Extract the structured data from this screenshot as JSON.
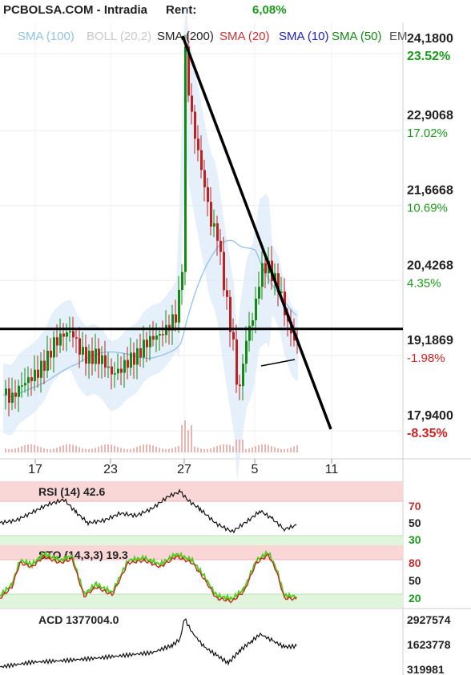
{
  "header": {
    "title": "PCBOLSA.COM - Intradia",
    "rent_label": "Rent:",
    "rent_value": "6,08%"
  },
  "legend": [
    {
      "label": "SMA (100)",
      "color": "#8fc3ea"
    },
    {
      "label": "BOLL (20,2)",
      "color": "#c9c9c9"
    },
    {
      "label": "SMA (200)",
      "color": "#222222"
    },
    {
      "label": "SMA (20)",
      "color": "#d03030"
    },
    {
      "label": "SMA (10)",
      "color": "#2020c0"
    },
    {
      "label": "SMA (50)",
      "color": "#138a13"
    },
    {
      "label": "EM",
      "color": "#555555"
    }
  ],
  "colors": {
    "up": "#138a13",
    "down": "#c02020",
    "positive": "#1a9a1a",
    "negative": "#d42020",
    "sma20": "#d03030",
    "sma10": "#2020c0",
    "sma50": "#138a13",
    "sma100": "#8fc3ea",
    "sma200": "#8a8a8a",
    "boll": "#dce9f8"
  },
  "chart_data": [
    {
      "type": "candlestick",
      "price_ticks": [
        {
          "value": 24.18,
          "label": "24,1800",
          "pct": "23.52%"
        },
        {
          "value": 22.9068,
          "label": "22,9068",
          "pct": "17.02%"
        },
        {
          "value": 21.6668,
          "label": "21,6668",
          "pct": "10.69%"
        },
        {
          "value": 20.4268,
          "label": "20,4268",
          "pct": "4.35%"
        },
        {
          "value": 19.1869,
          "label": "19,1869",
          "pct": "-1.98%"
        },
        {
          "value": 17.94,
          "label": "17,9400",
          "pct": "-8.35%"
        }
      ],
      "ylim": [
        17.94,
        24.18
      ],
      "x_ticks": [
        "17",
        "23",
        "27",
        "5",
        "11"
      ],
      "horizontal_line": 19.44,
      "trend_line": {
        "from": 24.18,
        "to": 17.94
      }
    },
    {
      "type": "line",
      "name": "RSI",
      "label": "RSI (14) 42.6",
      "levels": [
        "70",
        "50",
        "30"
      ]
    },
    {
      "type": "line",
      "name": "STO",
      "label": "STO (14,3,3) 19.3",
      "levels": [
        "80",
        "50",
        "20"
      ]
    },
    {
      "type": "line",
      "name": "ACD",
      "label": "ACD 1377004.0",
      "levels": [
        "2927574",
        "1623778",
        "319981"
      ]
    }
  ]
}
